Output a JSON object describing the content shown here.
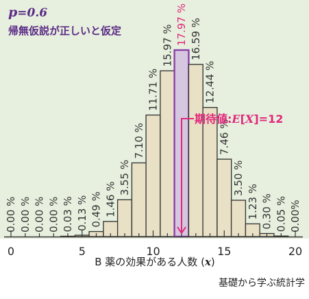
{
  "chart_data": {
    "type": "bar",
    "title_var": "p",
    "title_value": "=0.6",
    "subtitle": "帰無仮説が正しいと仮定",
    "xlabel_text": "B 薬の効果がある人数 (",
    "xlabel_var": "x",
    "xlabel_close": ")",
    "x": [
      0,
      1,
      2,
      3,
      4,
      5,
      6,
      7,
      8,
      9,
      10,
      11,
      12,
      13,
      14,
      15,
      16,
      17,
      18,
      19,
      20
    ],
    "values": [
      0.0,
      0.0,
      0.0,
      0.0,
      0.03,
      0.13,
      0.49,
      1.46,
      3.55,
      7.1,
      11.71,
      15.97,
      17.97,
      16.59,
      12.44,
      7.46,
      3.5,
      1.23,
      0.3,
      0.05,
      0.0
    ],
    "value_labels": [
      "0.00 %",
      "0.00 %",
      "0.00 %",
      "0.00 %",
      "0.03 %",
      "0.13 %",
      "0.49 %",
      "1.46 %",
      "3.55 %",
      "7.10 %",
      "11.71 %",
      "15.97 %",
      "17.97 %",
      "16.59 %",
      "12.44 %",
      "7.46 %",
      "3.50 %",
      "1.23 %",
      "0.30 %",
      "0.05 %",
      "0.00%"
    ],
    "highlight_index": 12,
    "xticks": [
      0,
      5,
      10,
      15,
      20
    ],
    "xtick_labels": [
      "0",
      "5",
      "10",
      "15",
      "20"
    ],
    "xlim": [
      0,
      20
    ],
    "ylim": [
      0,
      20
    ],
    "annotation": {
      "prefix": "期待値:",
      "var": "E",
      "bracket_open": "[",
      "inner_var": "X",
      "bracket_close": "]",
      "suffix": "=12",
      "x": 12
    },
    "colors": {
      "bar": "#e9e1c6",
      "highlight": "#d6c7e0",
      "highlight_edge": "#8a3fa6",
      "accent": "#e0277b",
      "title": "#5b2a86",
      "background": "#e7f0de"
    }
  },
  "footer": {
    "credit": "基礎から学ぶ統計学"
  }
}
